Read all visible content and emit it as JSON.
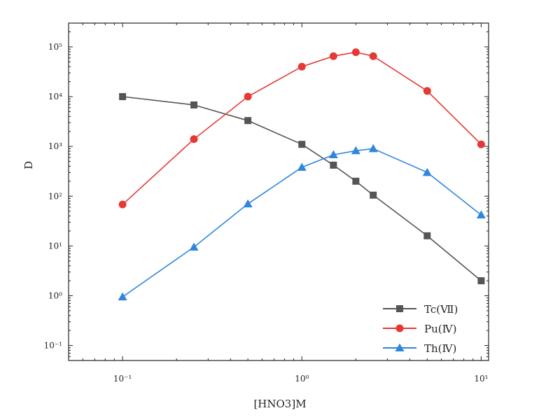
{
  "chart_data": {
    "type": "line",
    "title": "",
    "xlabel": "[HNO3]M",
    "ylabel": "D",
    "xscale": "log",
    "yscale": "log",
    "xlim": [
      0.05,
      11
    ],
    "ylim": [
      0.05,
      300000
    ],
    "x_ticks": [
      {
        "value": 0.1,
        "label": "10⁻¹"
      },
      {
        "value": 1,
        "label": "10⁰"
      },
      {
        "value": 10,
        "label": "10¹"
      }
    ],
    "y_ticks": [
      {
        "value": 0.1,
        "label": "10⁻¹"
      },
      {
        "value": 1,
        "label": "10⁰"
      },
      {
        "value": 10,
        "label": "10¹"
      },
      {
        "value": 100,
        "label": "10²"
      },
      {
        "value": 1000,
        "label": "10³"
      },
      {
        "value": 10000,
        "label": "10⁴"
      },
      {
        "value": 100000,
        "label": "10⁵"
      }
    ],
    "legend_position": "lower-right",
    "series": [
      {
        "name": "Tc(Ⅶ)",
        "color": "#555555",
        "marker": "square",
        "x": [
          0.1,
          0.25,
          0.5,
          1,
          1.5,
          2,
          2.5,
          5,
          10
        ],
        "values": [
          10000,
          6800,
          3300,
          1100,
          420,
          200,
          105,
          16,
          2
        ]
      },
      {
        "name": "Pu(Ⅳ)",
        "color": "#e53935",
        "marker": "circle",
        "x": [
          0.1,
          0.25,
          0.5,
          1,
          1.5,
          2,
          2.5,
          5,
          10
        ],
        "values": [
          68,
          1400,
          10000,
          40000,
          65000,
          78000,
          65000,
          13000,
          1100
        ]
      },
      {
        "name": "Th(Ⅳ)",
        "color": "#2e86de",
        "marker": "triangle",
        "x": [
          0.1,
          0.25,
          0.5,
          1,
          1.5,
          2,
          2.5,
          5,
          10
        ],
        "values": [
          0.95,
          9.5,
          70,
          380,
          680,
          820,
          900,
          300,
          42
        ]
      }
    ]
  }
}
